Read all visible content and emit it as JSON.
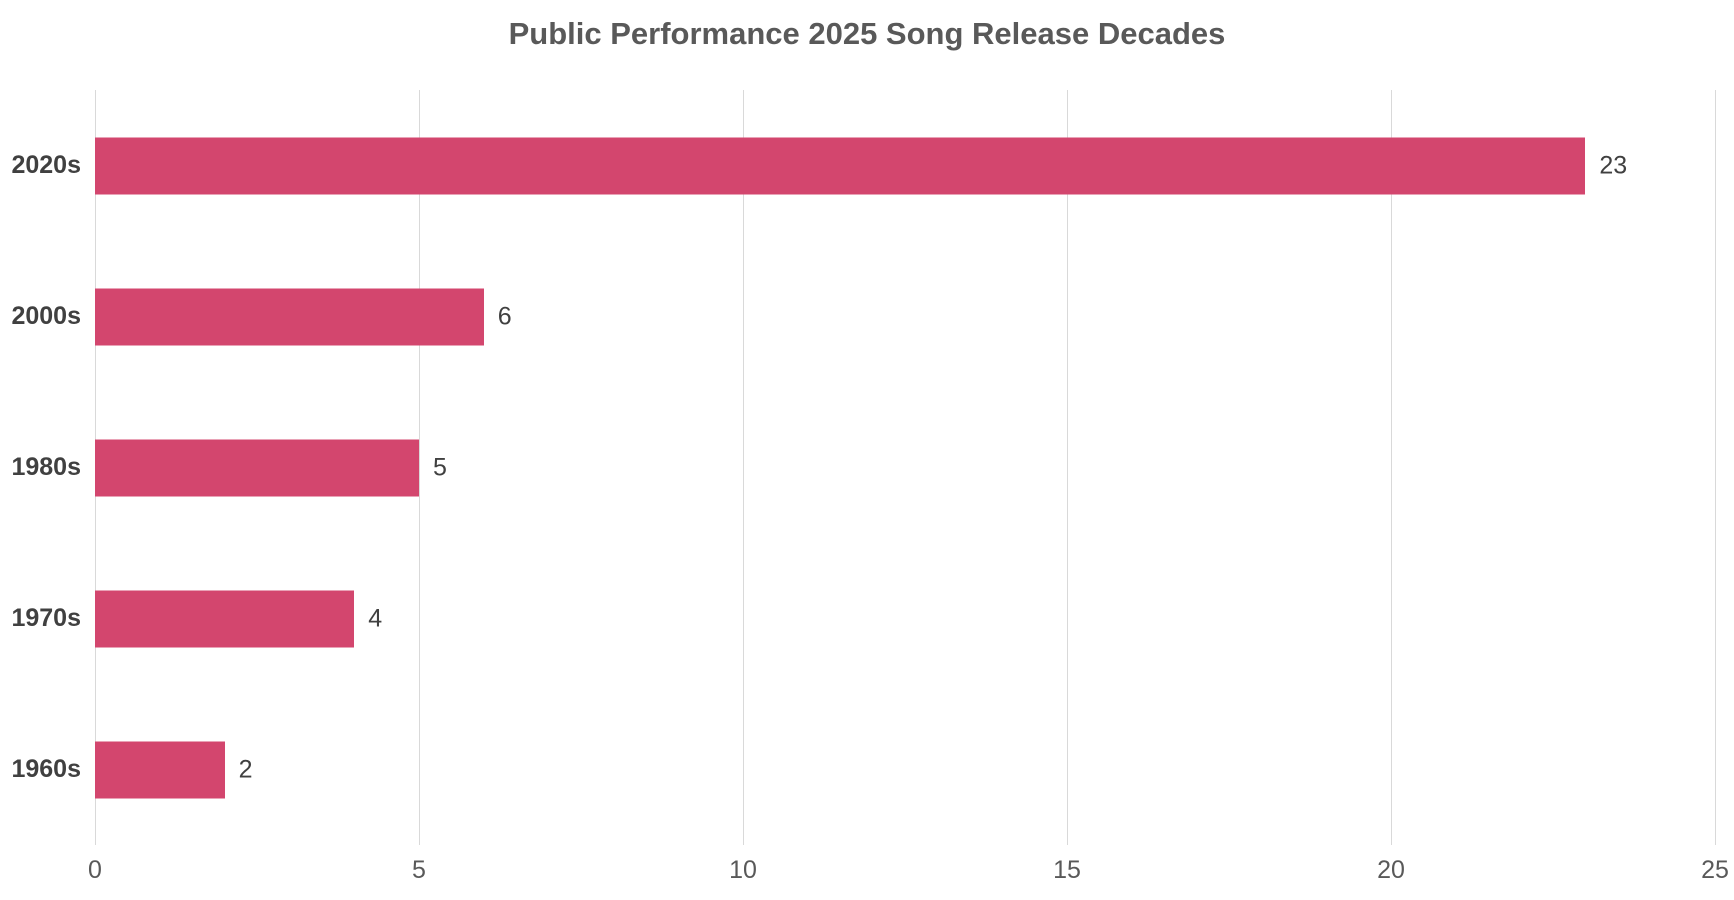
{
  "chart_data": {
    "type": "bar",
    "orientation": "horizontal",
    "title": "Public Performance 2025 Song Release Decades",
    "categories": [
      "2020s",
      "2000s",
      "1980s",
      "1970s",
      "1960s"
    ],
    "values": [
      23,
      6,
      5,
      4,
      2
    ],
    "data_labels": [
      "23",
      "6",
      "5",
      "4",
      "2"
    ],
    "xlabel": "",
    "ylabel": "",
    "xlim": [
      0,
      25
    ],
    "xticks": [
      0,
      5,
      10,
      15,
      20,
      25
    ],
    "xtick_labels": [
      "0",
      "5",
      "10",
      "15",
      "20",
      "25"
    ],
    "grid": "vertical-only",
    "legend": "none",
    "colors": {
      "bar": "#D3466E",
      "title_text": "#595959",
      "category_text": "#404040",
      "value_text": "#404040",
      "tick_text": "#595959",
      "gridline": "#D9D9D9",
      "background": "#FFFFFF"
    }
  }
}
